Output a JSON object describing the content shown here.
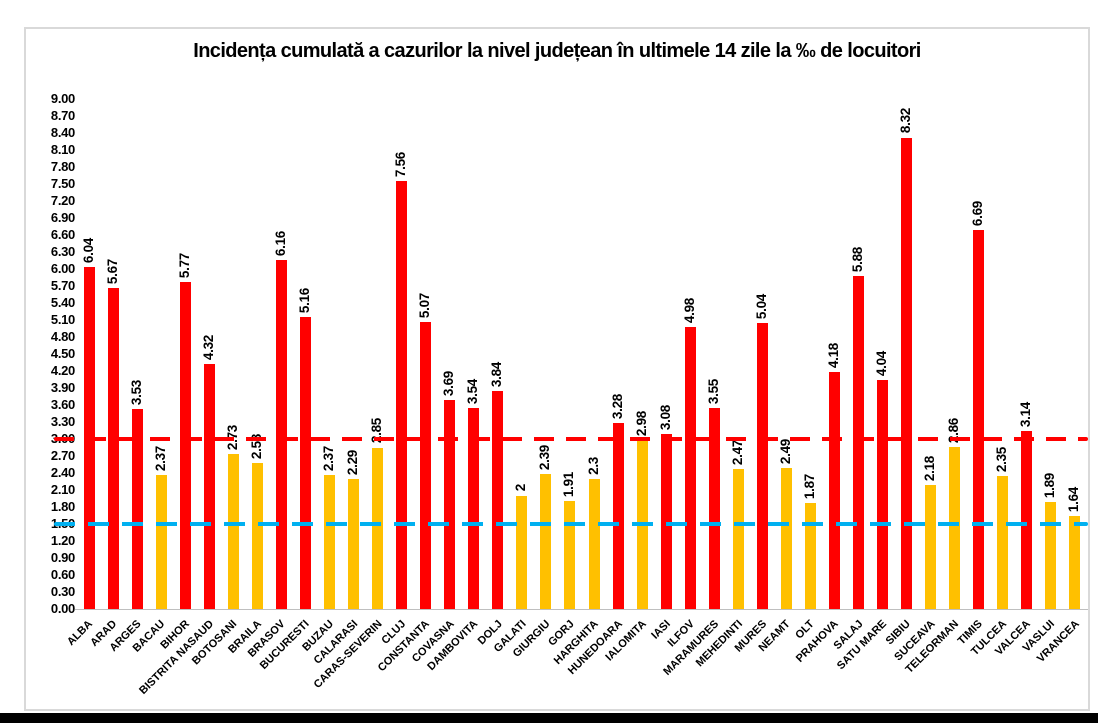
{
  "chart_data": {
    "type": "bar",
    "title": "Incidența cumulată a cazurilor la nivel județean în ultimele 14 zile la ‰ de locuitori",
    "xlabel": "",
    "ylabel": "",
    "categories": [
      "ALBA",
      "ARAD",
      "ARGES",
      "BACAU",
      "BIHOR",
      "BISTRITA NASAUD",
      "BOTOSANI",
      "BRAILA",
      "BRASOV",
      "BUCURESTI",
      "BUZAU",
      "CALARASI",
      "CARAS-SEVERIN",
      "CLUJ",
      "CONSTANTA",
      "COVASNA",
      "DAMBOVITA",
      "DOLJ",
      "GALATI",
      "GIURGIU",
      "GORJ",
      "HARGHITA",
      "HUNEDOARA",
      "IALOMITA",
      "IASI",
      "ILFOV",
      "MARAMURES",
      "MEHEDINTI",
      "MURES",
      "NEAMT",
      "OLT",
      "PRAHOVA",
      "SALAJ",
      "SATU MARE",
      "SIBIU",
      "SUCEAVA",
      "TELEORMAN",
      "TIMIS",
      "TULCEA",
      "VALCEA",
      "VASLUI",
      "VRANCEA"
    ],
    "values": [
      6.04,
      5.67,
      3.53,
      2.37,
      5.77,
      4.32,
      2.73,
      2.58,
      6.16,
      5.16,
      2.37,
      2.29,
      2.85,
      7.56,
      5.07,
      3.69,
      3.54,
      3.84,
      2,
      2.39,
      1.91,
      2.3,
      3.28,
      2.98,
      3.08,
      4.98,
      3.55,
      2.47,
      5.04,
      2.49,
      1.87,
      4.18,
      5.88,
      4.04,
      8.32,
      2.18,
      2.86,
      6.69,
      2.35,
      3.14,
      1.89,
      1.64
    ],
    "value_labels": [
      "6.04",
      "5.67",
      "3.53",
      "2.37",
      "5.77",
      "4.32",
      "2.73",
      "2.58",
      "6.16",
      "5.16",
      "2.37",
      "2.29",
      "2.85",
      "7.56",
      "5.07",
      "3.69",
      "3.54",
      "3.84",
      "2",
      "2.39",
      "1.91",
      "2.3",
      "3.28",
      "2.98",
      "3.08",
      "4.98",
      "3.55",
      "2.47",
      "5.04",
      "2.49",
      "1.87",
      "4.18",
      "5.88",
      "4.04",
      "8.32",
      "2.18",
      "2.86",
      "6.69",
      "2.35",
      "3.14",
      "1.89",
      "1.64"
    ],
    "ylim": [
      0,
      9
    ],
    "y_tick_step": 0.3,
    "y_ticks": [
      "9.00",
      "8.70",
      "8.40",
      "8.10",
      "7.80",
      "7.50",
      "7.20",
      "6.90",
      "6.60",
      "6.30",
      "6.00",
      "5.70",
      "5.40",
      "5.10",
      "4.80",
      "4.50",
      "4.20",
      "3.90",
      "3.60",
      "3.30",
      "3.00",
      "2.70",
      "2.40",
      "2.10",
      "1.80",
      "1.50",
      "1.20",
      "0.90",
      "0.60",
      "0.30",
      "0.00"
    ],
    "grid": false,
    "legend": "none",
    "bar_color_rule": {
      "threshold": 3.0,
      "at_or_above": "#FF0000",
      "below": "#FFC000"
    },
    "reference_lines": [
      {
        "name": "red-threshold-line",
        "value": 3.0,
        "color": "#FF0000",
        "style": "dashed"
      },
      {
        "name": "blue-threshold-line",
        "value": 1.5,
        "color": "#00B0F0",
        "style": "dashed"
      }
    ],
    "axis_color": "#BFBFBF",
    "panel_border_color": "#D9D9D9",
    "text_color": "#000000"
  },
  "page": {
    "background": "#FFFFFF",
    "bottom_bar_color": "#000000"
  }
}
